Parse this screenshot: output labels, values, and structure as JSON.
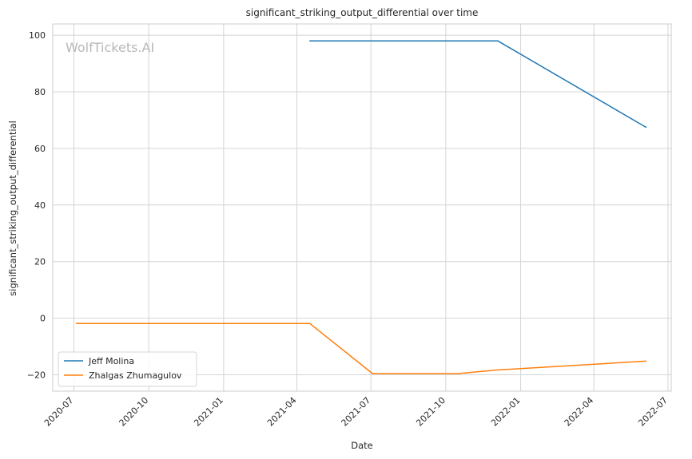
{
  "chart_data": {
    "type": "line",
    "title": "significant_striking_output_differential over time",
    "xlabel": "Date",
    "ylabel": "significant_striking_output_differential",
    "watermark": "WolfTickets.AI",
    "xlim": [
      "2020-06-05",
      "2022-07-05"
    ],
    "ylim": [
      -25.8,
      104
    ],
    "x_ticks": [
      "2020-07",
      "2020-10",
      "2021-01",
      "2021-04",
      "2021-07",
      "2021-10",
      "2022-01",
      "2022-04",
      "2022-07"
    ],
    "y_ticks": [
      -20,
      0,
      20,
      40,
      60,
      80,
      100
    ],
    "grid": true,
    "legend_position": "lower-left",
    "series": [
      {
        "name": "Jeff Molina",
        "color": "#1f77b4",
        "points": [
          {
            "x": "2021-04-17",
            "y": 98
          },
          {
            "x": "2021-12-04",
            "y": 98
          },
          {
            "x": "2022-06-04",
            "y": 67.5
          }
        ]
      },
      {
        "name": "Zhalgas Zhumagulov",
        "color": "#ff7f0e",
        "points": [
          {
            "x": "2020-07-04",
            "y": -1.9
          },
          {
            "x": "2021-04-17",
            "y": -1.9
          },
          {
            "x": "2021-07-03",
            "y": -19.6
          },
          {
            "x": "2021-10-16",
            "y": -19.6
          },
          {
            "x": "2021-12-04",
            "y": -18.3
          },
          {
            "x": "2022-06-04",
            "y": -15.2
          }
        ]
      }
    ]
  }
}
